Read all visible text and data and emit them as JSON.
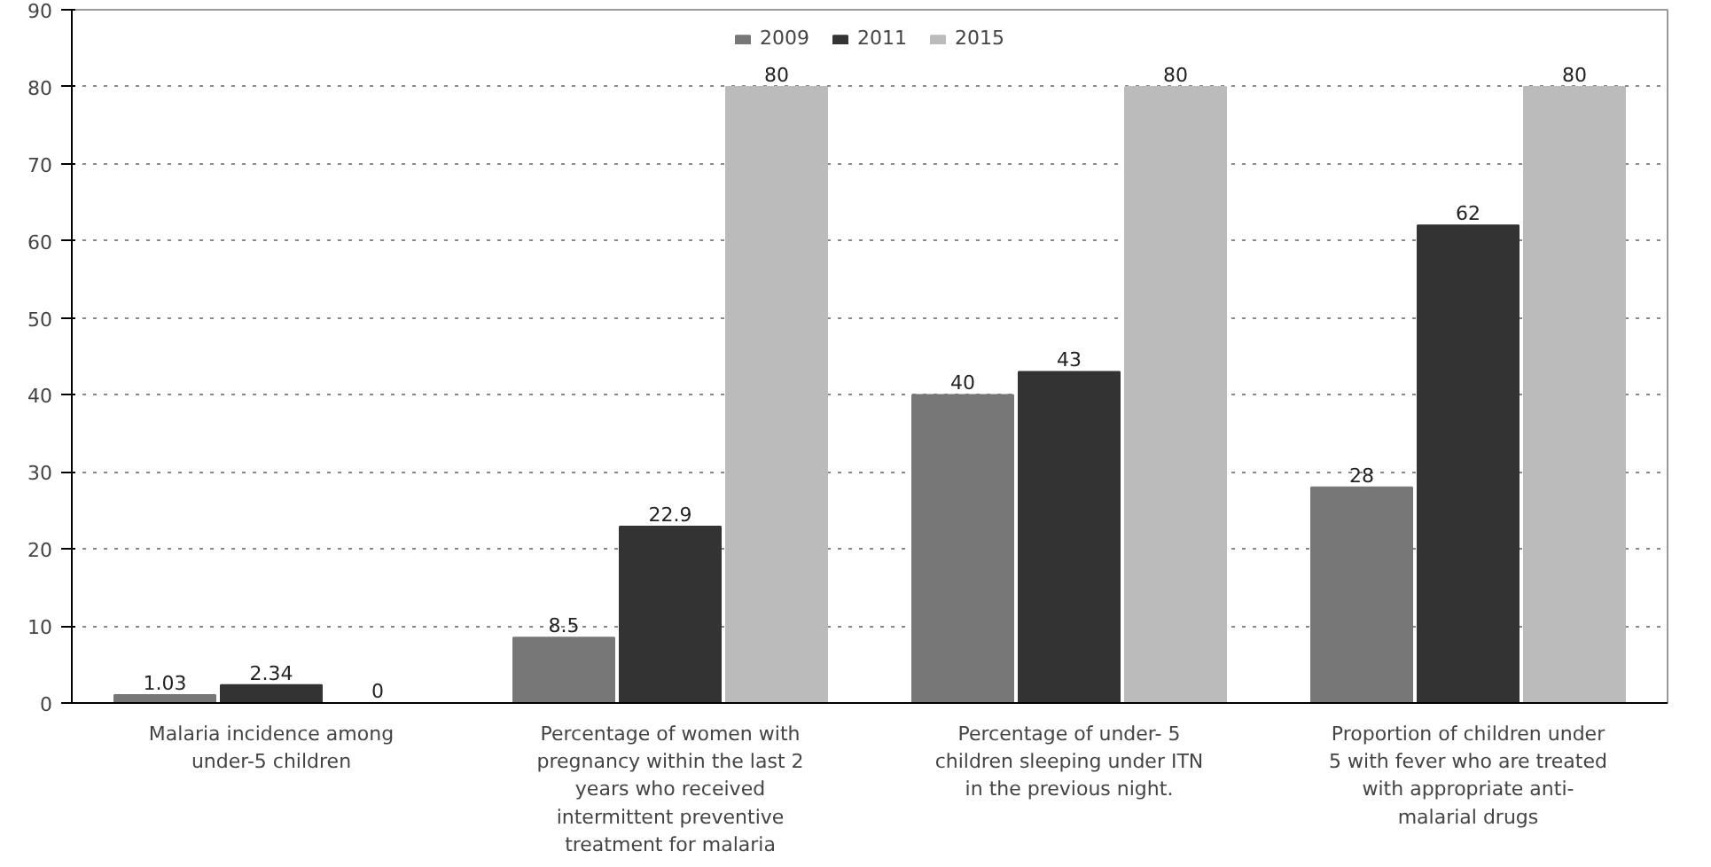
{
  "chart_data": {
    "type": "bar",
    "categories": [
      "Malaria incidence among under-5 children",
      "Percentage of women with pregnancy within the last 2 years who received intermittent preventive treatment for malaria",
      "Percentage of under- 5 children sleeping under ITN in the previous night.",
      "Proportion of children under 5 with fever who are treated with appropriate anti-malarial drugs"
    ],
    "series": [
      {
        "name": "2009",
        "color": "#777777",
        "values": [
          1.03,
          8.5,
          40,
          28
        ]
      },
      {
        "name": "2011",
        "color": "#333333",
        "values": [
          2.34,
          22.9,
          43,
          62
        ]
      },
      {
        "name": "2015",
        "color": "#bbbbbb",
        "values": [
          0,
          80,
          80,
          80
        ]
      }
    ],
    "ylim": [
      0,
      90
    ],
    "yticks": [
      0,
      10,
      20,
      30,
      40,
      50,
      60,
      70,
      80,
      90
    ],
    "grid": "y",
    "legend": "top",
    "data_labels": true
  }
}
